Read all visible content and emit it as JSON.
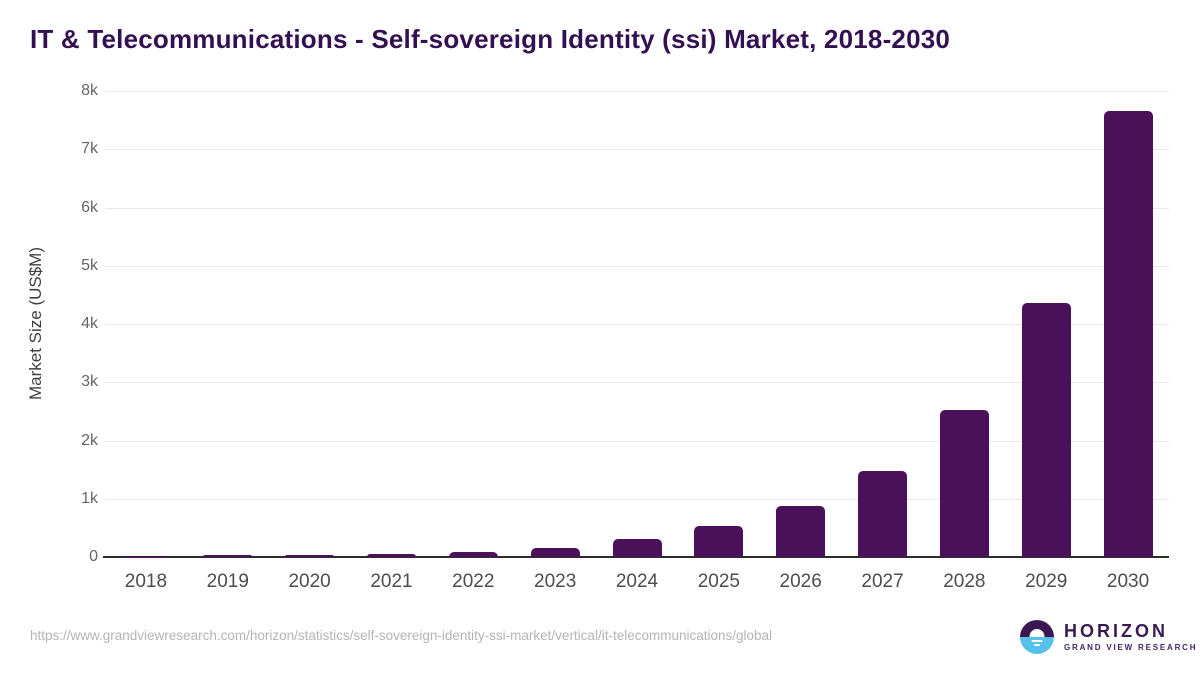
{
  "title": "IT & Telecommunications - Self-sovereign Identity (ssi) Market, 2018-2030",
  "chart_data": {
    "type": "bar",
    "title": "IT & Telecommunications - Self-sovereign Identity (ssi) Market, 2018-2030",
    "categories": [
      "2018",
      "2019",
      "2020",
      "2021",
      "2022",
      "2023",
      "2024",
      "2025",
      "2026",
      "2027",
      "2028",
      "2029",
      "2030"
    ],
    "values": [
      10,
      30,
      40,
      60,
      90,
      155,
      305,
      525,
      870,
      1480,
      2520,
      4360,
      7650
    ],
    "xlabel": "",
    "ylabel": "Market Size (US$M)",
    "ylim": [
      0,
      8000
    ],
    "ytick_step": 1000,
    "yticks": [
      "0",
      "1k",
      "2k",
      "3k",
      "4k",
      "5k",
      "6k",
      "7k",
      "8k"
    ],
    "grid": true,
    "legend_position": "none",
    "bar_color": "#4a115a",
    "gridline_color": "#e8e8e8",
    "axis_line_color": "#2e2e2e"
  },
  "footer": {
    "source_url": "https://www.grandviewresearch.com/horizon/statistics/self-sovereign-identity-ssi-market/vertical/it-telecommunications/global",
    "logo": {
      "brand": "HORIZON",
      "sub": "GRAND VIEW RESEARCH"
    }
  },
  "colors": {
    "title": "#331052",
    "bar": "#4a115a",
    "logo_purple": "#3a1750",
    "logo_blue": "#56c2ea"
  }
}
